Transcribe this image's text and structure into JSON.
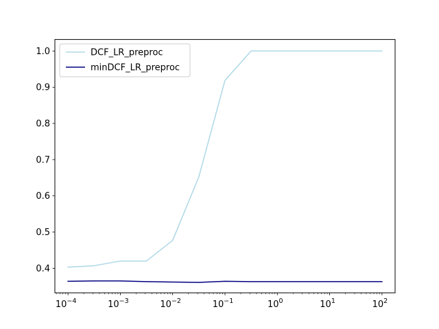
{
  "chart_data": {
    "type": "line",
    "x_scale": "log",
    "x": [
      0.0001,
      0.000316,
      0.001,
      0.00316,
      0.01,
      0.0316,
      0.1,
      0.316,
      1,
      3.16,
      10,
      31.6,
      100
    ],
    "series": [
      {
        "name": "DCF_LR_preproc",
        "color": "#add8e6",
        "values": [
          0.403,
          0.407,
          0.42,
          0.42,
          0.477,
          0.652,
          0.919,
          1.0,
          1.0,
          1.0,
          1.0,
          1.0,
          1.0
        ]
      },
      {
        "name": "minDCF_LR_preproc",
        "color": "#000080",
        "values": [
          0.364,
          0.365,
          0.365,
          0.363,
          0.362,
          0.361,
          0.364,
          0.363,
          0.363,
          0.363,
          0.363,
          0.363,
          0.363
        ]
      }
    ],
    "xlim": [
      5.62e-05,
      178
    ],
    "ylim": [
      0.3322,
      1.0318
    ],
    "x_ticks": [
      {
        "value": 0.0001,
        "base": "10",
        "exp": "−4"
      },
      {
        "value": 0.001,
        "base": "10",
        "exp": "−3"
      },
      {
        "value": 0.01,
        "base": "10",
        "exp": "−2"
      },
      {
        "value": 0.1,
        "base": "10",
        "exp": "−1"
      },
      {
        "value": 1,
        "base": "10",
        "exp": "0"
      },
      {
        "value": 10,
        "base": "10",
        "exp": "1"
      },
      {
        "value": 100,
        "base": "10",
        "exp": "2"
      }
    ],
    "y_ticks": [
      {
        "value": 0.4,
        "label": "0.4"
      },
      {
        "value": 0.5,
        "label": "0.5"
      },
      {
        "value": 0.6,
        "label": "0.6"
      },
      {
        "value": 0.7,
        "label": "0.7"
      },
      {
        "value": 0.8,
        "label": "0.8"
      },
      {
        "value": 0.9,
        "label": "0.9"
      },
      {
        "value": 1.0,
        "label": "1.0"
      }
    ],
    "title": "",
    "xlabel": "",
    "ylabel": "",
    "grid": false,
    "legend_position": "top-left"
  }
}
